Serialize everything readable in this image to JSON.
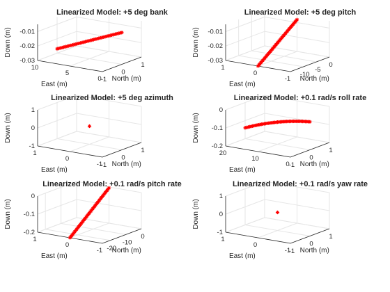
{
  "chart_data": [
    {
      "type": "scatter",
      "title": "Linearized Model: +5 deg bank",
      "xlabel": "North (m)",
      "ylabel": "East (m)",
      "zlabel": "Down (m)",
      "xticks": [
        "-1",
        "0",
        "1"
      ],
      "yticks": [
        "0",
        "5",
        "10"
      ],
      "zticks": [
        "-0.03",
        "-0.02",
        "-0.01"
      ],
      "xlim": [
        -1,
        1
      ],
      "ylim": [
        0,
        10
      ],
      "zlim": [
        -0.03,
        -0.005
      ],
      "grid": true,
      "marker": "*",
      "color": "#ff0000",
      "series": [
        {
          "start": [
            0,
            10,
            -0.027
          ],
          "end": [
            0,
            0,
            -0.008
          ],
          "count": 40
        }
      ]
    },
    {
      "type": "scatter",
      "title": "Linearized Model: +5 deg pitch",
      "xlabel": "North (m)",
      "ylabel": "East (m)",
      "zlabel": "Down (m)",
      "xticks": [
        "-10",
        "-5",
        "0"
      ],
      "yticks": [
        "-1",
        "0",
        "1"
      ],
      "zticks": [
        "-0.03",
        "-0.02",
        "-0.01"
      ],
      "xlim": [
        -15,
        0
      ],
      "ylim": [
        -1,
        1
      ],
      "zlim": [
        -0.03,
        -0.005
      ],
      "grid": true,
      "marker": "*",
      "color": "#ff0000",
      "series": [
        {
          "start": [
            -15,
            0,
            -0.03
          ],
          "end": [
            0,
            0,
            -0.008
          ],
          "count": 42
        }
      ]
    },
    {
      "type": "scatter",
      "title": "Linearized Model: +5 deg azimuth",
      "xlabel": "North (m)",
      "ylabel": "East (m)",
      "zlabel": "Down (m)",
      "xticks": [
        "-1",
        "0",
        "1"
      ],
      "yticks": [
        "-1",
        "0",
        "1"
      ],
      "zticks": [
        "-1",
        "0",
        "1"
      ],
      "xlim": [
        -1,
        1
      ],
      "ylim": [
        -1,
        1
      ],
      "zlim": [
        -1,
        1
      ],
      "grid": true,
      "marker": "*",
      "color": "#ff0000",
      "series": [
        {
          "start": [
            0,
            0,
            0
          ],
          "end": [
            0,
            0,
            0
          ],
          "count": 1
        }
      ]
    },
    {
      "type": "scatter",
      "title": "Linearized Model: +0.1 rad/s roll rate",
      "xlabel": "North (m)",
      "ylabel": "East (m)",
      "zlabel": "Down (m)",
      "xticks": [
        "-1",
        "0",
        "1"
      ],
      "yticks": [
        "0",
        "10",
        "20"
      ],
      "zticks": [
        "-0.2",
        "-0.1",
        "0"
      ],
      "xlim": [
        -1,
        1
      ],
      "ylim": [
        0,
        20
      ],
      "zlim": [
        -0.2,
        0
      ],
      "grid": true,
      "marker": "*",
      "color": "#ff0000",
      "series": [
        {
          "start": [
            0,
            20,
            -0.14
          ],
          "end": [
            0,
            0,
            -0.045
          ],
          "count": 45,
          "curve": 0.03
        }
      ]
    },
    {
      "type": "scatter",
      "title": "Linearized Model: +0.1 rad/s pitch rate",
      "xlabel": "North (m)",
      "ylabel": "East (m)",
      "zlabel": "Down (m)",
      "xticks": [
        "-20",
        "-10",
        "0"
      ],
      "yticks": [
        "-1",
        "0",
        "1"
      ],
      "zticks": [
        "-0.2",
        "-0.1",
        "0"
      ],
      "xlim": [
        -25,
        0
      ],
      "ylim": [
        -1,
        1
      ],
      "zlim": [
        -0.2,
        0
      ],
      "grid": true,
      "marker": "*",
      "color": "#ff0000",
      "series": [
        {
          "start": [
            -25,
            0,
            -0.2
          ],
          "end": [
            0,
            0,
            -0.005
          ],
          "count": 42
        }
      ]
    },
    {
      "type": "scatter",
      "title": "Linearized Model: +0.1 rad/s yaw rate",
      "xlabel": "North (m)",
      "ylabel": "East (m)",
      "zlabel": "Down (m)",
      "xticks": [
        "-1",
        "0",
        "1"
      ],
      "yticks": [
        "-1",
        "0",
        "1"
      ],
      "zticks": [
        "-1",
        "0",
        "1"
      ],
      "xlim": [
        -1,
        1
      ],
      "ylim": [
        -1,
        1
      ],
      "zlim": [
        -1,
        1
      ],
      "grid": true,
      "marker": "*",
      "color": "#ff0000",
      "series": [
        {
          "start": [
            0,
            0,
            0
          ],
          "end": [
            0,
            0,
            0
          ],
          "count": 1
        }
      ]
    }
  ]
}
